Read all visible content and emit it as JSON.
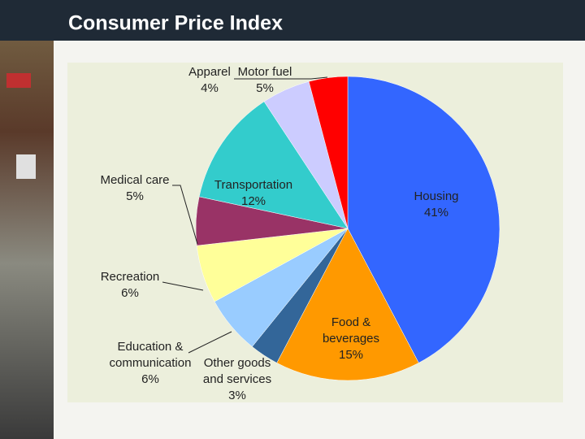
{
  "chart_data": {
    "type": "pie",
    "title": "Consumer Price Index",
    "categories": [
      "Housing",
      "Food & beverages",
      "Other goods and services",
      "Education & communication",
      "Recreation",
      "Medical care",
      "Transportation",
      "Motor fuel",
      "Apparel"
    ],
    "values": [
      41,
      15,
      3,
      6,
      6,
      5,
      12,
      5,
      4
    ],
    "value_labels": [
      "41%",
      "15%",
      "3%",
      "6%",
      "6%",
      "5%",
      "12%",
      "5%",
      "4%"
    ],
    "colors": [
      "#3366ff",
      "#ff9900",
      "#336699",
      "#99ccff",
      "#ffff99",
      "#993366",
      "#33cccc",
      "#ccccff",
      "#ff0000"
    ]
  }
}
